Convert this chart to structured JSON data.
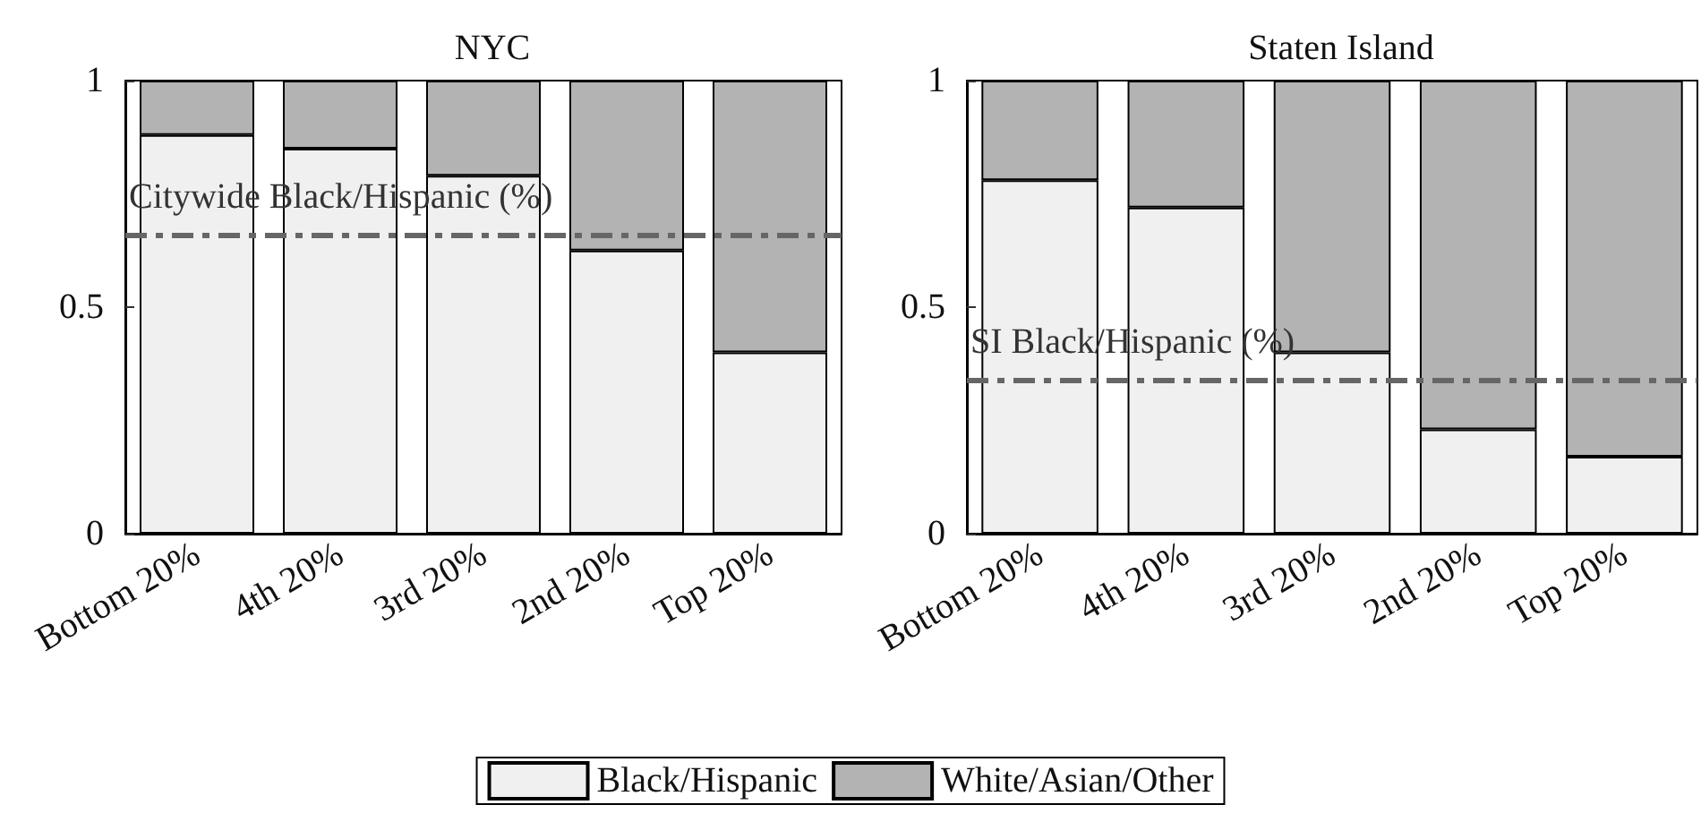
{
  "chart_data": [
    {
      "type": "bar",
      "title": "NYC",
      "categories": [
        "Bottom 20%",
        "4th 20%",
        "3rd 20%",
        "2nd 20%",
        "Top 20%"
      ],
      "stacked": true,
      "series": [
        {
          "name": "Black/Hispanic",
          "color": "#f0f0f0",
          "values": [
            0.88,
            0.85,
            0.79,
            0.625,
            0.4
          ]
        },
        {
          "name": "White/Asian/Other",
          "color": "#b3b3b3",
          "values": [
            0.12,
            0.15,
            0.21,
            0.375,
            0.6
          ]
        }
      ],
      "ylim": [
        0,
        1
      ],
      "yticks": [
        0,
        0.5,
        1
      ],
      "grid": false,
      "legend": "bottom",
      "ref_lines": [
        {
          "axis": "y",
          "value": 0.66,
          "label": "Citywide Black/Hispanic (%)",
          "color": "#666666",
          "line_style": "dashed"
        }
      ]
    },
    {
      "type": "bar",
      "title": "Staten Island",
      "categories": [
        "Bottom 20%",
        "4th 20%",
        "3rd 20%",
        "2nd 20%",
        "Top 20%"
      ],
      "stacked": true,
      "series": [
        {
          "color": "#f0f0f0",
          "values": [
            0.78,
            0.72,
            0.4,
            0.23,
            0.17
          ]
        },
        {
          "color": "#b3b3b3",
          "values": [
            0.22,
            0.28,
            0.6,
            0.77,
            0.83
          ]
        }
      ],
      "ylim": [
        0,
        1
      ],
      "yticks": [
        0,
        0.5,
        1
      ],
      "grid": false,
      "ref_lines": [
        {
          "axis": "y",
          "value": 0.34,
          "label": "SI Black/Hispanic (%)",
          "color": "#666666",
          "line_style": "dashed"
        }
      ]
    }
  ]
}
